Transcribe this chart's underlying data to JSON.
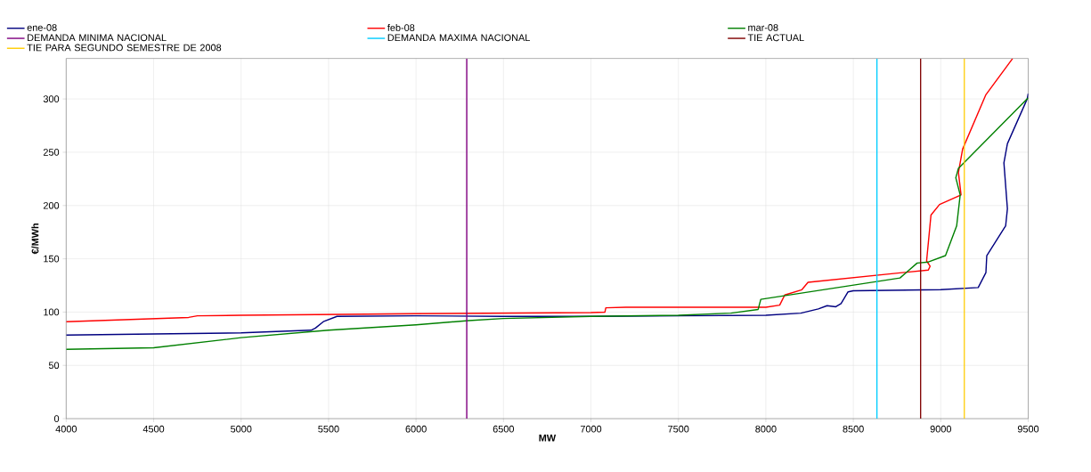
{
  "chart_data": {
    "type": "line",
    "xlabel": "MW",
    "ylabel": "€/MWh",
    "xlim": [
      4000,
      9500
    ],
    "xticks": [
      4000,
      4500,
      5000,
      5500,
      6000,
      6500,
      7000,
      7500,
      8000,
      8500,
      9000,
      9500
    ],
    "ylim": [
      0,
      338
    ],
    "yticks": [
      0,
      50,
      100,
      150,
      200,
      250,
      300
    ],
    "grid": true,
    "legend": "top",
    "marker": "none",
    "line_style": "solid",
    "series": [
      {
        "name": "ene-08",
        "color": "#000080",
        "x": [
          4000,
          4500,
          5000,
          5400,
          5425,
          5470,
          5548,
          6000,
          6500,
          7000,
          7500,
          8000,
          8200,
          8300,
          8350,
          8400,
          8430,
          8470,
          8500,
          9000,
          9214,
          9258,
          9263,
          9371,
          9381,
          9361,
          9381,
          9494,
          9500
        ],
        "values": [
          78.5,
          79.5,
          80.5,
          83,
          85,
          91,
          96,
          96.5,
          96,
          96,
          96.5,
          97,
          99,
          103,
          106,
          105,
          108,
          119,
          120,
          121,
          123,
          137,
          153,
          181,
          197,
          240,
          258,
          300,
          305
        ]
      },
      {
        "name": "feb-08",
        "color": "#ff0000",
        "x": [
          4000,
          4700,
          4750,
          5000,
          6000,
          7000,
          7080,
          7085,
          7200,
          8000,
          8079,
          8108,
          8206,
          8241,
          8929,
          8939,
          8919,
          8944,
          8993,
          9116,
          9101,
          9125,
          9258,
          9411
        ],
        "values": [
          91,
          95,
          96.5,
          97,
          98.5,
          99.5,
          100,
          104,
          104.5,
          104.5,
          106.5,
          116,
          121,
          128,
          139.5,
          143,
          148,
          191,
          201,
          210,
          231,
          253,
          304,
          338
        ]
      },
      {
        "name": "mar-08",
        "color": "#008000",
        "x": [
          4000,
          4500,
          5000,
          5500,
          6000,
          6300,
          6500,
          7000,
          7500,
          7800,
          7956,
          7971,
          8767,
          8865,
          8929,
          9027,
          9091,
          9111,
          9086,
          9101,
          9494,
          9500
        ],
        "values": [
          65,
          66.5,
          76,
          83,
          88,
          92,
          94,
          96,
          97,
          99,
          102.5,
          112,
          132,
          146,
          147,
          153,
          181,
          210,
          226,
          235,
          300,
          301
        ]
      }
    ],
    "ref_lines": [
      {
        "axis": "x",
        "value": 6290,
        "label": "DEMANDA MINIMA NACIONAL",
        "color": "#800080"
      },
      {
        "axis": "x",
        "value": 8635,
        "label": "DEMANDA MAXIMA NACIONAL",
        "color": "#00ccff"
      },
      {
        "axis": "x",
        "value": 8885,
        "label": "TIE ACTUAL",
        "color": "#800000"
      },
      {
        "axis": "x",
        "value": 9135,
        "label": "TIE PARA SEGUNDO SEMESTRE DE 2008",
        "color": "#ffcc00"
      }
    ]
  }
}
